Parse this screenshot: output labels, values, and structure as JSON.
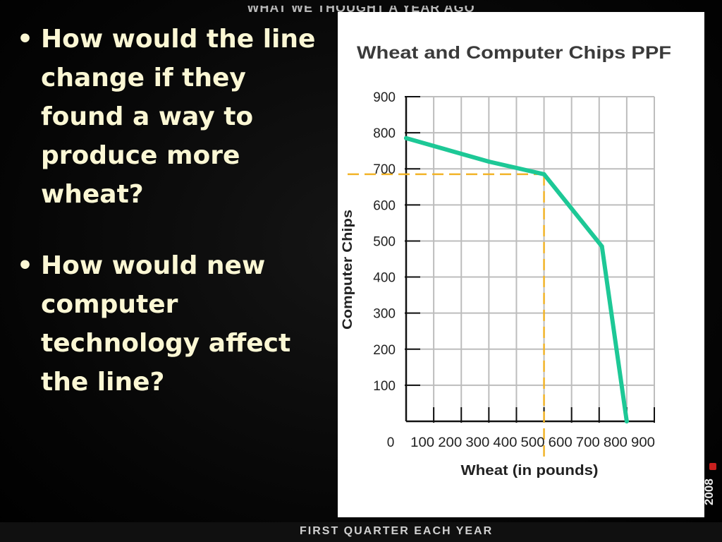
{
  "header": {
    "banner": "WHAT WE THOUGHT A YEAR AGO"
  },
  "bullets": [
    "How would the line change if they found a way to produce more wheat?",
    "How would new computer technology affect the line?"
  ],
  "footer": {
    "text": "FIRST QUARTER EACH YEAR",
    "year": "2008"
  },
  "colors": {
    "background": "#000000",
    "bullet_text": "#fbf7d4",
    "ppf_line": "#1dc896",
    "dashed_guide": "#f2b428",
    "grid": "#bdbdbd",
    "axis": "#111111"
  },
  "chart_data": {
    "type": "line",
    "title": "Wheat and Computer Chips PPF",
    "xlabel": "Wheat (in pounds)",
    "ylabel": "Computer Chips",
    "xlim": [
      0,
      900
    ],
    "ylim": [
      0,
      900
    ],
    "x_ticks": [
      "0",
      "100",
      "200",
      "300",
      "400",
      "500",
      "600",
      "700",
      "800",
      "900"
    ],
    "y_ticks": [
      "100",
      "200",
      "300",
      "400",
      "500",
      "600",
      "700",
      "800",
      "900"
    ],
    "grid": true,
    "series": [
      {
        "points": [
          {
            "x": 0,
            "y": 785
          },
          {
            "x": 300,
            "y": 720
          },
          {
            "x": 500,
            "y": 685
          },
          {
            "x": 710,
            "y": 485
          },
          {
            "x": 800,
            "y": 0
          }
        ]
      }
    ],
    "annotations": [
      {
        "type": "dashed-guide",
        "x": 500,
        "y": 685
      }
    ]
  }
}
